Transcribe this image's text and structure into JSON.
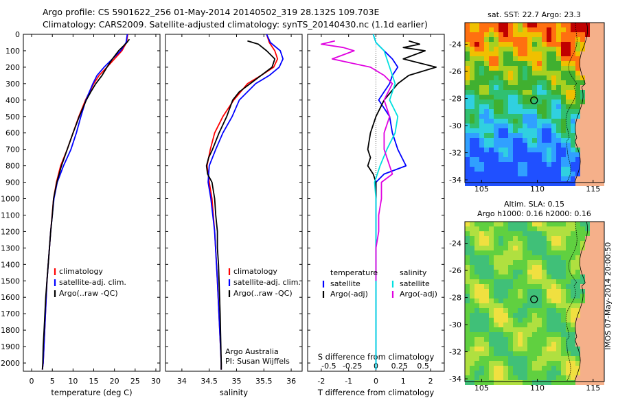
{
  "titles": {
    "line1": "Argo profile: CS 5901622_256 01-May-2014 20140502_319 28.132S 109.703E",
    "line2": "Climatology: CARS2009. Satellite-adjusted climatology: synTS_20140430.nc (1.1d earlier)"
  },
  "colors": {
    "climatology": "#ff0000",
    "satellite": "#0000ff",
    "argo": "#000000",
    "sat_s": "#00e0e0",
    "argo_s": "#e000e0",
    "land": "#f5b08a"
  },
  "chart_data": [
    {
      "type": "line",
      "name": "temperature-panel",
      "xlabel": "temperature (deg C)",
      "xlim": [
        -2,
        31
      ],
      "ylim": [
        2050,
        0
      ],
      "xticks": [
        0,
        5,
        10,
        15,
        20,
        25,
        30
      ],
      "yticks": [
        0,
        100,
        200,
        300,
        400,
        500,
        600,
        700,
        800,
        900,
        1000,
        1100,
        1200,
        1300,
        1400,
        1500,
        1600,
        1700,
        1800,
        1900,
        2000
      ],
      "legend": [
        "climatology",
        "satellite-adj. clim.",
        "Argo(..raw -QC)"
      ],
      "series": [
        {
          "name": "climatology",
          "color": "#ff0000",
          "depth": [
            0,
            50,
            100,
            150,
            200,
            250,
            300,
            400,
            500,
            600,
            700,
            800,
            900,
            1000,
            1200,
            1500,
            2000,
            2040
          ],
          "values": [
            23.2,
            22.9,
            21.8,
            20.0,
            18.2,
            16.3,
            15.0,
            13.0,
            11.4,
            10.0,
            8.6,
            7.0,
            6.0,
            5.3,
            4.6,
            3.7,
            2.8,
            2.6
          ]
        },
        {
          "name": "satellite-adj. clim.",
          "color": "#0000ff",
          "depth": [
            0,
            50,
            100,
            150,
            200,
            250,
            300,
            400,
            500,
            600,
            700,
            800,
            900,
            1000,
            1200,
            1500,
            2000,
            2040
          ],
          "values": [
            23.1,
            22.8,
            21.5,
            19.5,
            17.5,
            15.8,
            14.8,
            13.1,
            11.9,
            10.8,
            9.5,
            7.7,
            6.2,
            5.4,
            4.6,
            3.7,
            2.8,
            2.6
          ]
        },
        {
          "name": "Argo(..raw -QC)",
          "color": "#000000",
          "depth": [
            30,
            50,
            100,
            150,
            200,
            250,
            300,
            350,
            400,
            500,
            600,
            700,
            800,
            900,
            1000,
            1100,
            1200,
            1300,
            1400,
            1500,
            1600,
            1700,
            1800,
            1900,
            2000,
            2040
          ],
          "values": [
            23.6,
            23.0,
            21.0,
            19.5,
            18.2,
            17.0,
            15.5,
            14.3,
            13.2,
            11.5,
            10.0,
            8.6,
            7.2,
            6.1,
            5.3,
            5.0,
            4.6,
            4.3,
            4.0,
            3.7,
            3.4,
            3.2,
            3.0,
            2.8,
            2.7,
            2.6
          ]
        }
      ]
    },
    {
      "type": "line",
      "name": "salinity-panel",
      "xlabel": "salinity",
      "xlim": [
        33.7,
        36.2
      ],
      "ylim": [
        2050,
        0
      ],
      "xticks": [
        34,
        34.5,
        35,
        35.5,
        36
      ],
      "legend": [
        "climatology",
        "satellite-adj. clim.",
        "Argo(..raw -QC)"
      ],
      "annotations": [
        "Argo Australia",
        "PI: Susan Wijffels"
      ],
      "series": [
        {
          "name": "climatology",
          "color": "#ff0000",
          "depth": [
            0,
            50,
            100,
            150,
            200,
            250,
            300,
            400,
            500,
            600,
            700,
            800,
            900,
            1000,
            1200,
            1500,
            2000,
            2040
          ],
          "values": [
            35.55,
            35.6,
            35.7,
            35.75,
            35.68,
            35.45,
            35.2,
            34.95,
            34.75,
            34.6,
            34.52,
            34.46,
            34.5,
            34.55,
            34.6,
            34.65,
            34.72,
            34.72
          ]
        },
        {
          "name": "satellite-adj. clim.",
          "color": "#0000ff",
          "depth": [
            0,
            50,
            100,
            150,
            200,
            250,
            300,
            400,
            500,
            600,
            700,
            800,
            900,
            1000,
            1200,
            1500,
            2000,
            2040
          ],
          "values": [
            35.55,
            35.62,
            35.8,
            35.85,
            35.78,
            35.6,
            35.35,
            35.05,
            34.92,
            34.75,
            34.62,
            34.5,
            34.48,
            34.53,
            34.6,
            34.65,
            34.72,
            34.72
          ]
        },
        {
          "name": "Argo(..raw -QC)",
          "color": "#000000",
          "depth": [
            40,
            60,
            100,
            150,
            200,
            250,
            300,
            350,
            400,
            500,
            600,
            700,
            750,
            800,
            850,
            900,
            1000,
            1100,
            1200,
            1300,
            1400,
            1500,
            1700,
            2000,
            2040
          ],
          "values": [
            35.2,
            35.4,
            35.55,
            35.7,
            35.65,
            35.45,
            35.25,
            35.05,
            34.93,
            34.82,
            34.68,
            34.56,
            34.49,
            34.45,
            34.47,
            34.55,
            34.6,
            34.62,
            34.65,
            34.65,
            34.67,
            34.68,
            34.7,
            34.72,
            34.72
          ]
        }
      ]
    },
    {
      "type": "line",
      "name": "difference-panel",
      "xlabel": "T difference from climatology",
      "xlabel_top": "S difference from climatology",
      "xlim_t": [
        -2.5,
        2.5
      ],
      "ylim": [
        2050,
        0
      ],
      "xticks_t": [
        -2,
        -1,
        0,
        1,
        2
      ],
      "xticks_s": [
        "-0.5",
        "-0.25",
        "0",
        "0.25",
        "0.5"
      ],
      "legend_t_title": "temperature",
      "legend_s_title": "salinity",
      "legend_t": [
        "satellite",
        "Argo(-adj)"
      ],
      "legend_s": [
        "satellite",
        "Argo(-adj)"
      ],
      "series": [
        {
          "name": "temperature satellite",
          "color": "#0000ff",
          "depth": [
            0,
            50,
            100,
            150,
            200,
            250,
            300,
            350,
            400,
            500,
            600,
            700,
            800,
            850,
            900,
            1000,
            1500,
            2040
          ],
          "values": [
            -0.1,
            0.0,
            0.3,
            0.6,
            0.8,
            0.6,
            0.5,
            0.3,
            0.1,
            0.5,
            0.6,
            0.8,
            1.1,
            0.3,
            0.0,
            0.0,
            0.0,
            0.0
          ]
        },
        {
          "name": "temperature Argo(-adj)",
          "color": "#000000",
          "depth": [
            40,
            60,
            80,
            100,
            150,
            200,
            250,
            300,
            400,
            500,
            600,
            700,
            750,
            800,
            850,
            900,
            1000
          ],
          "values": [
            1.2,
            1.6,
            1.0,
            1.8,
            1.0,
            2.2,
            1.2,
            0.8,
            0.3,
            0.0,
            -0.2,
            -0.3,
            -0.2,
            -0.3,
            -0.1,
            0.0,
            0.0
          ]
        },
        {
          "name": "salinity satellite",
          "color": "#00e0e0",
          "depth": [
            0,
            50,
            100,
            200,
            300,
            400,
            500,
            600,
            700,
            800,
            900,
            1000,
            1200,
            1350,
            1500,
            2040
          ],
          "values": [
            -0.1,
            0.0,
            0.3,
            0.5,
            0.7,
            0.5,
            0.8,
            0.7,
            0.4,
            0.15,
            -0.05,
            0.0,
            0.0,
            0.0,
            0.0,
            0.0
          ]
        },
        {
          "name": "salinity Argo(-adj)",
          "color": "#e000e0",
          "depth": [
            40,
            60,
            80,
            100,
            150,
            200,
            250,
            300,
            400,
            500,
            600,
            700,
            750,
            800,
            850,
            900,
            1000,
            1100,
            1200,
            1300,
            1500
          ],
          "values": [
            -1.5,
            -2.0,
            -1.2,
            -0.8,
            -1.6,
            -0.2,
            0.3,
            0.6,
            0.3,
            0.5,
            0.3,
            0.3,
            0.4,
            0.5,
            0.6,
            0.2,
            0.2,
            0.1,
            0.1,
            0.0,
            0.0
          ]
        }
      ]
    },
    {
      "type": "heatmap",
      "name": "sst-map",
      "title": "sat. SST: 22.7  Argo: 23.3",
      "xticks": [
        105,
        110,
        115
      ],
      "yticks": [
        -24,
        -26,
        -28,
        -30,
        -32,
        -34
      ]
    },
    {
      "type": "heatmap",
      "name": "sla-map",
      "title": "Altim. SLA: 0.15",
      "subtitle": "Argo h1000: 0.16 h2000: 0.16",
      "xticks": [
        105,
        110,
        115
      ],
      "yticks": [
        -24,
        -26,
        -28,
        -30,
        -32,
        -34
      ]
    }
  ],
  "side_label": "IMOS 07-May-2014 20:00:50"
}
